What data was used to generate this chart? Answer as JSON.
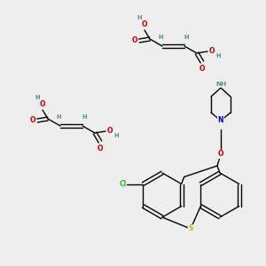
{
  "bg_color": "#eeeeee",
  "fig_size": [
    3.0,
    3.0
  ],
  "dpi": 100,
  "atom_colors": {
    "C": "#000000",
    "H": "#4a9090",
    "O": "#cc0000",
    "N": "#0000cc",
    "S": "#b8b800",
    "Cl": "#33bb33"
  },
  "bond_color": "#000000",
  "bond_lw": 1.0,
  "font_size_atom": 5.5,
  "font_size_h": 4.8
}
